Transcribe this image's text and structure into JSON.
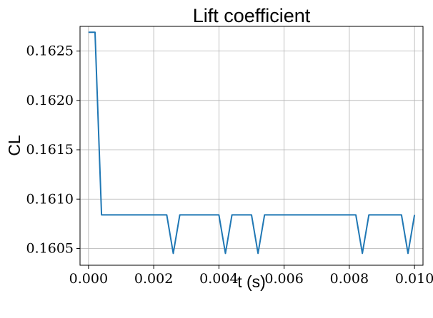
{
  "chart_data": {
    "type": "line",
    "title": "Lift coefficient",
    "xlabel": "t (s)",
    "ylabel": "CL",
    "xlim": [
      -0.00026,
      0.01026
    ],
    "ylim": [
      0.16033,
      0.16275
    ],
    "xticks": [
      "0.000",
      "0.002",
      "0.004",
      "0.006",
      "0.008",
      "0.010"
    ],
    "yticks": [
      "0.1605",
      "0.1610",
      "0.1615",
      "0.1620",
      "0.1625"
    ],
    "grid": true,
    "line_color": "#1f77b4",
    "series": [
      {
        "x": [
          0.0,
          0.0002,
          0.0004,
          0.0024,
          0.0026,
          0.0028,
          0.004,
          0.0042,
          0.0044,
          0.005,
          0.0052,
          0.0054,
          0.0082,
          0.0084,
          0.0086,
          0.0096,
          0.0098,
          0.01
        ],
        "values": [
          0.16269,
          0.16269,
          0.16084,
          0.16084,
          0.16045,
          0.16084,
          0.16084,
          0.16045,
          0.16084,
          0.16084,
          0.16045,
          0.16084,
          0.16084,
          0.16045,
          0.16084,
          0.16084,
          0.16045,
          0.16084
        ]
      }
    ]
  }
}
